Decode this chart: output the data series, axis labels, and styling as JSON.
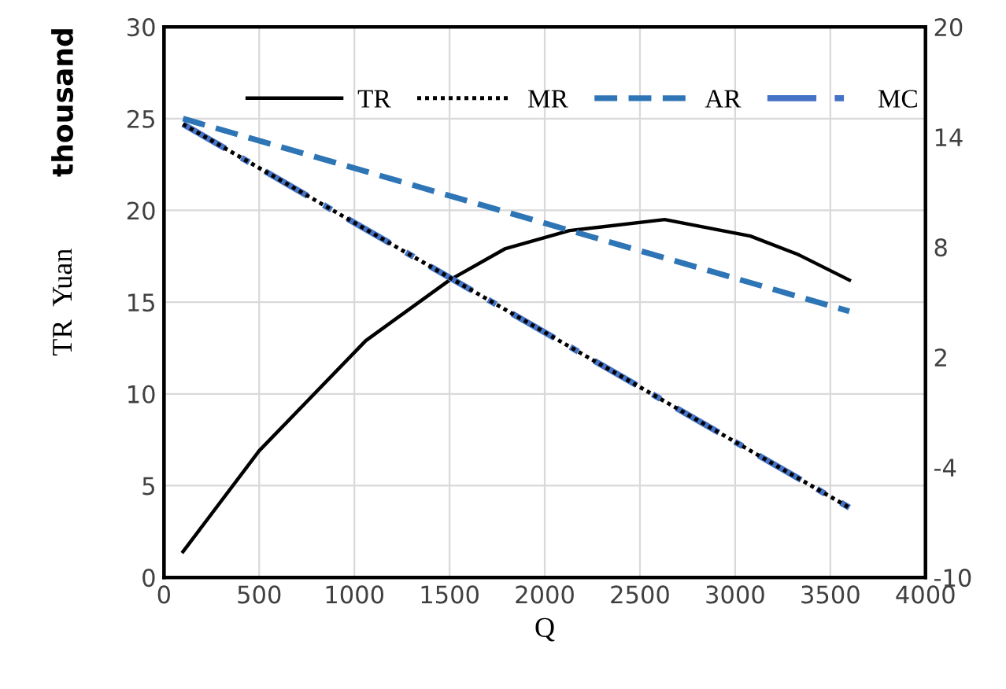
{
  "chart_data": {
    "type": "line",
    "xlabel": "Q",
    "ylabel": "TR  Yuan",
    "annotations": [
      "thousand"
    ],
    "xlim": [
      0,
      4000
    ],
    "xticks": [
      0,
      500,
      1000,
      1500,
      2000,
      2500,
      3000,
      3500,
      4000
    ],
    "ylim": [
      0,
      30
    ],
    "yticks": [
      0,
      5,
      10,
      15,
      20,
      25,
      30
    ],
    "y2lim": [
      -10,
      20
    ],
    "y2ticks": [
      -10,
      -4,
      2,
      8,
      14,
      20
    ],
    "grid": true,
    "legend": "top",
    "marker": "none",
    "series": [
      {
        "name": "TR",
        "color": "#000000",
        "line_style": "solid",
        "x": [
          100,
          500,
          1060,
          1500,
          1790,
          2130,
          2630,
          3080,
          3330,
          3600
        ],
        "values": [
          1.4,
          6.9,
          12.9,
          16.2,
          17.9,
          18.9,
          19.5,
          18.6,
          17.6,
          16.2
        ]
      },
      {
        "name": "MR",
        "color": "#000000",
        "line_style": "dotted",
        "axis": "y2",
        "x": [
          100,
          3600
        ],
        "values": [
          14.7,
          -6.2
        ]
      },
      {
        "name": "AR",
        "color": "#2e75b6",
        "line_style": "dashed",
        "axis": "y2",
        "x": [
          100,
          3600
        ],
        "values": [
          15,
          4.5
        ]
      },
      {
        "name": "MC",
        "color": "#4472c4",
        "line_style": "dashdot",
        "axis": "y2",
        "x": [
          100,
          3600
        ],
        "values": [
          14.7,
          -6.2
        ]
      }
    ]
  }
}
